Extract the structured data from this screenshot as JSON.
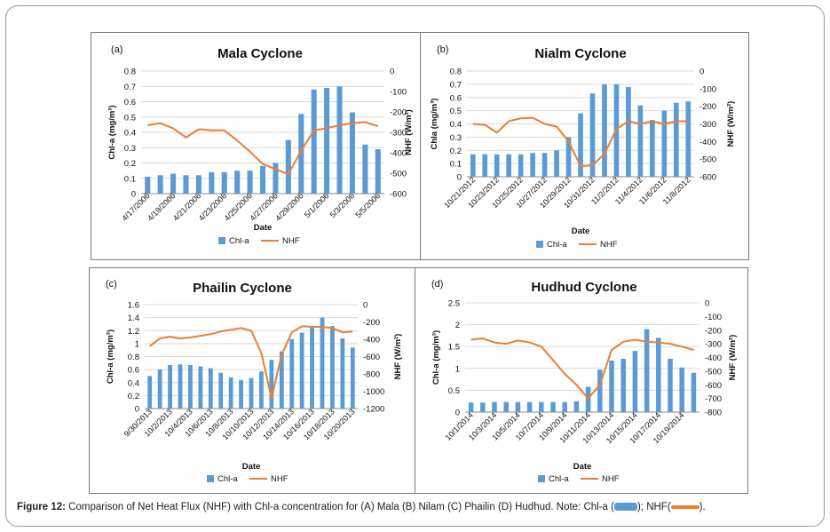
{
  "caption": {
    "label": "Figure 12:",
    "text": "Comparison of Net Heat Flux (NHF) with Chl-a concentration for (A) Mala (B) Nilam (C) Phailin (D) Hudhud. Note: Chl-a (",
    "mid": "); NHF(",
    "end": ")."
  },
  "colors": {
    "bar": "#5b9bd5",
    "line": "#ed7d31",
    "grid": "#d9d9d9",
    "axis": "#888888",
    "text": "#111111"
  },
  "chart_data": [
    {
      "type": "bar",
      "panel_label": "(a)",
      "title": "Mala Cyclone",
      "xlabel": "Date",
      "ylabel": "Chl-a (mg/m³)",
      "y2label": "NHF (W/m²)",
      "ylim": [
        0,
        0.8
      ],
      "yticks": [
        "0",
        "0.1",
        "0.2",
        "0.3",
        "0.4",
        "0.5",
        "0.6",
        "0.7",
        "0.8"
      ],
      "y2lim": [
        -600,
        0
      ],
      "y2ticks": [
        "0",
        "-100",
        "-200",
        "-300",
        "-400",
        "-500",
        "-600"
      ],
      "categories": [
        "4/17/2006",
        "4/18/2006",
        "4/19/2006",
        "4/20/2006",
        "4/21/2006",
        "4/22/2006",
        "4/23/2006",
        "4/24/2006",
        "4/25/2006",
        "4/26/2006",
        "4/27/2006",
        "4/28/2006",
        "4/29/2006",
        "4/30/2006",
        "5/1/2006",
        "5/2/2006",
        "5/3/2006",
        "5/4/2006",
        "5/5/2006"
      ],
      "tick_labels": [
        "4/17/2006",
        "",
        "4/19/2006",
        "",
        "4/21/2006",
        "",
        "4/23/2006",
        "",
        "4/25/2006",
        "",
        "4/27/2006",
        "",
        "4/29/2006",
        "",
        "5/1/2006",
        "",
        "5/3/2006",
        "",
        "5/5/2006"
      ],
      "series": [
        {
          "name": "Chl-a",
          "axis": "left",
          "kind": "bar",
          "values": [
            0.11,
            0.12,
            0.13,
            0.12,
            0.12,
            0.14,
            0.14,
            0.15,
            0.15,
            0.18,
            0.2,
            0.35,
            0.52,
            0.68,
            0.69,
            0.7,
            0.53,
            0.32,
            0.29
          ]
        },
        {
          "name": "NHF",
          "axis": "right",
          "kind": "line",
          "values": [
            -265,
            -255,
            -280,
            -325,
            -285,
            -290,
            -290,
            -340,
            -395,
            -455,
            -480,
            -505,
            -390,
            -290,
            -280,
            -265,
            -255,
            -250,
            -270
          ]
        }
      ],
      "legend": [
        "Chl-a",
        "NHF"
      ]
    },
    {
      "type": "bar",
      "panel_label": "(b)",
      "title": "Nialm Cyclone",
      "xlabel": "Date",
      "ylabel": "Chla (mg/m³)",
      "y2label": "NHF (W/m²)",
      "ylim": [
        0,
        0.8
      ],
      "yticks": [
        "0",
        "0.1",
        "0.2",
        "0.3",
        "0.4",
        "0.5",
        "0.6",
        "0.7",
        "0.8"
      ],
      "y2lim": [
        -600,
        0
      ],
      "y2ticks": [
        "0",
        "-100",
        "-200",
        "-300",
        "-400",
        "-500",
        "-600"
      ],
      "categories": [
        "10/21/2012",
        "10/22/2012",
        "10/23/2012",
        "10/24/2012",
        "10/25/2012",
        "10/26/2012",
        "10/27/2012",
        "10/28/2012",
        "10/29/2012",
        "10/30/2012",
        "10/31/2012",
        "11/1/2012",
        "11/2/2012",
        "11/3/2012",
        "11/4/2012",
        "11/5/2012",
        "11/6/2012",
        "11/7/2012",
        "11/8/2012"
      ],
      "tick_labels": [
        "10/21/2012",
        "",
        "10/23/2012",
        "",
        "10/25/2012",
        "",
        "10/27/2012",
        "",
        "10/29/2012",
        "",
        "10/31/2012",
        "",
        "11/2/2012",
        "",
        "11/4/2012",
        "",
        "11/6/2012",
        "",
        "11/8/2012"
      ],
      "series": [
        {
          "name": "Chl-a",
          "axis": "left",
          "kind": "bar",
          "values": [
            0.17,
            0.17,
            0.17,
            0.17,
            0.17,
            0.18,
            0.18,
            0.2,
            0.3,
            0.48,
            0.63,
            0.7,
            0.7,
            0.68,
            0.54,
            0.43,
            0.5,
            0.56,
            0.57
          ]
        },
        {
          "name": "NHF",
          "axis": "right",
          "kind": "line",
          "values": [
            -300,
            -305,
            -350,
            -285,
            -268,
            -265,
            -300,
            -315,
            -400,
            -540,
            -535,
            -470,
            -330,
            -285,
            -300,
            -285,
            -300,
            -285,
            -285
          ]
        }
      ],
      "legend": [
        "Chl-a",
        "NHF"
      ]
    },
    {
      "type": "bar",
      "panel_label": "(c)",
      "title": "Phailin Cyclone",
      "xlabel": "Date",
      "ylabel": "Chl-a (mg/m³)",
      "y2label": "NHF (W/m²)",
      "ylim": [
        0,
        1.6
      ],
      "yticks": [
        "0",
        "0.2",
        "0.4",
        "0.6",
        "0.8",
        "1",
        "1.2",
        "1.4",
        "1.6"
      ],
      "y2lim": [
        -1200,
        0
      ],
      "y2ticks": [
        "0",
        "-200",
        "-400",
        "-600",
        "-800",
        "-1000",
        "-1200"
      ],
      "categories": [
        "9/30/2013",
        "10/1/2013",
        "10/2/2013",
        "10/3/2013",
        "10/4/2013",
        "10/5/2013",
        "10/6/2013",
        "10/7/2013",
        "10/8/2013",
        "10/9/2013",
        "10/10/2013",
        "10/11/2013",
        "10/12/2013",
        "10/13/2013",
        "10/14/2013",
        "10/15/2013",
        "10/16/2013",
        "10/17/2013",
        "10/18/2013",
        "10/19/2013",
        "10/20/2013"
      ],
      "tick_labels": [
        "9/30/2013",
        "",
        "10/2/2013",
        "",
        "10/4/2013",
        "",
        "10/6/2013",
        "",
        "10/8/2013",
        "",
        "10/10/2013",
        "",
        "10/12/2013",
        "",
        "10/14/2013",
        "",
        "10/16/2013",
        "",
        "10/18/2013",
        "",
        "10/20/2013"
      ],
      "series": [
        {
          "name": "Chl-a",
          "axis": "left",
          "kind": "bar",
          "values": [
            0.5,
            0.6,
            0.67,
            0.68,
            0.67,
            0.65,
            0.62,
            0.55,
            0.48,
            0.44,
            0.47,
            0.57,
            0.75,
            0.88,
            1.07,
            1.17,
            1.25,
            1.4,
            1.27,
            1.08,
            0.94
          ]
        },
        {
          "name": "NHF",
          "axis": "right",
          "kind": "line",
          "values": [
            -480,
            -390,
            -370,
            -390,
            -380,
            -360,
            -340,
            -310,
            -290,
            -270,
            -300,
            -560,
            -1080,
            -580,
            -320,
            -250,
            -255,
            -260,
            -270,
            -320,
            -310
          ]
        }
      ],
      "legend": [
        "Chl-a",
        "NHF"
      ]
    },
    {
      "type": "bar",
      "panel_label": "(d)",
      "title": "Hudhud Cyclone",
      "xlabel": "Date",
      "ylabel": "Chl-a (mg/m³)",
      "y2label": "NHF (W/m²)",
      "ylim": [
        0,
        2.5
      ],
      "yticks": [
        "0",
        "0.5",
        "1",
        "1.5",
        "2",
        "2.5"
      ],
      "y2lim": [
        -800,
        0
      ],
      "y2ticks": [
        "0",
        "-100",
        "-200",
        "-300",
        "-400",
        "-500",
        "-600",
        "-700",
        "-800"
      ],
      "categories": [
        "10/1/2014",
        "10/2/2014",
        "10/3/2014",
        "10/4/2014",
        "10/5/2014",
        "10/6/2014",
        "10/7/2014",
        "10/8/2014",
        "10/9/2014",
        "10/10/2014",
        "10/11/2014",
        "10/12/2014",
        "10/13/2014",
        "10/14/2014",
        "10/15/2014",
        "10/16/2014",
        "10/17/2014",
        "10/18/2014",
        "10/19/2014",
        "10/20/2014"
      ],
      "tick_labels": [
        "10/1/2014",
        "",
        "10/3/2014",
        "",
        "10/5/2014",
        "",
        "10/7/2014",
        "",
        "10/9/2014",
        "",
        "10/11/2014",
        "",
        "10/13/2014",
        "",
        "10/15/2014",
        "",
        "10/17/2014",
        "",
        "10/19/2014",
        ""
      ],
      "series": [
        {
          "name": "Chl-a",
          "axis": "left",
          "kind": "bar",
          "values": [
            0.22,
            0.22,
            0.23,
            0.23,
            0.23,
            0.23,
            0.23,
            0.23,
            0.23,
            0.25,
            0.58,
            0.97,
            1.18,
            1.22,
            1.4,
            1.9,
            1.7,
            1.22,
            1.02,
            0.9
          ]
        },
        {
          "name": "NHF",
          "axis": "right",
          "kind": "line",
          "values": [
            -270,
            -260,
            -290,
            -300,
            -275,
            -290,
            -320,
            -420,
            -520,
            -600,
            -700,
            -600,
            -345,
            -285,
            -270,
            -285,
            -290,
            -300,
            -320,
            -345
          ]
        }
      ],
      "legend": [
        "Chl-a",
        "NHF"
      ]
    }
  ]
}
